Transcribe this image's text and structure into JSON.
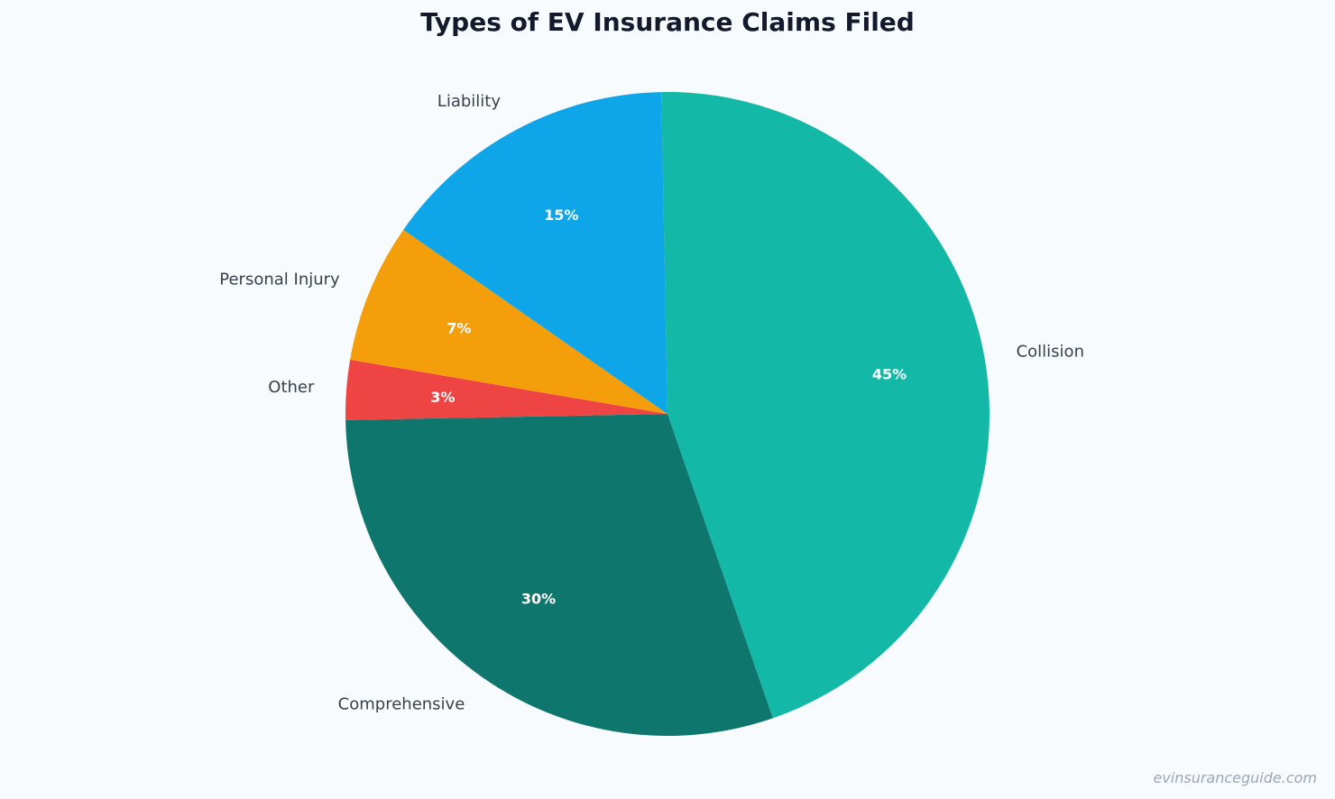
{
  "chart_data": {
    "type": "pie",
    "title": "Types of EV Insurance Claims Filed",
    "slices": [
      {
        "label": "Collision",
        "value": 45,
        "display": "45%",
        "color": "#14b8a6"
      },
      {
        "label": "Comprehensive",
        "value": 30,
        "display": "30%",
        "color": "#0f766e"
      },
      {
        "label": "Other",
        "value": 3,
        "display": "3%",
        "color": "#ef4444"
      },
      {
        "label": "Personal Injury",
        "value": 7,
        "display": "7%",
        "color": "#f59e0b"
      },
      {
        "label": "Liability",
        "value": 15,
        "display": "15%",
        "color": "#0ea5e9"
      }
    ],
    "start_angle_deg": 91.1,
    "direction": "clockwise",
    "legend": "none"
  },
  "watermark": "evinsuranceguide.com"
}
